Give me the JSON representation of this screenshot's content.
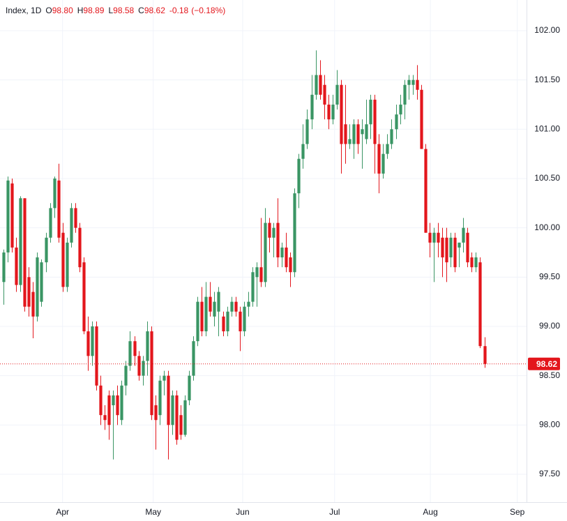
{
  "chart_data": {
    "type": "candlestick",
    "legend": {
      "symbol": "Index, 1D",
      "fields": [
        {
          "label": "O",
          "value": "98.80"
        },
        {
          "label": "H",
          "value": "98.89"
        },
        {
          "label": "L",
          "value": "98.58"
        },
        {
          "label": "C",
          "value": "98.62"
        }
      ],
      "change": "-0.18",
      "change_pct": "(−0.18%)"
    },
    "open": [
      99.45,
      99.75,
      100.45,
      99.8,
      99.42,
      100.3,
      99.5,
      99.35,
      99.1,
      99.25,
      99.65,
      99.9,
      100.2,
      100.48,
      99.95,
      99.4,
      99.85,
      100.2,
      100.0,
      99.65,
      98.95,
      98.7,
      99.0,
      98.4,
      98.1,
      98.3,
      98.2,
      98.3,
      98.05,
      98.4,
      98.6,
      98.85,
      98.7,
      98.5,
      98.65,
      98.95,
      98.2,
      98.1,
      98.45,
      98.5,
      98.0,
      98.3,
      98.1,
      97.9,
      98.25,
      98.5,
      98.85,
      99.25,
      98.95,
      99.3,
      99.1,
      99.15,
      99.1,
      98.95,
      99.15,
      99.25,
      99.15,
      98.95,
      99.2,
      99.25,
      99.5,
      99.6,
      99.45,
      100.05,
      99.9,
      100.05,
      99.7,
      99.8,
      99.7,
      99.55,
      100.35,
      100.7,
      100.85,
      101.1,
      101.35,
      101.55,
      101.45,
      101.25,
      101.1,
      101.25,
      101.45,
      101.05,
      100.85,
      100.85,
      101.05,
      100.95,
      100.9,
      101.05,
      101.3,
      100.85,
      100.55,
      100.75,
      100.85,
      101.0,
      101.15,
      101.25,
      101.45,
      101.45,
      101.5,
      101.4,
      100.8,
      99.95,
      99.85,
      99.95,
      99.9,
      99.9,
      99.7,
      99.9,
      99.8,
      99.85,
      99.95,
      99.7,
      99.6,
      99.65,
      98.8
    ],
    "high": [
      99.78,
      100.52,
      100.5,
      99.9,
      100.32,
      100.3,
      99.6,
      99.45,
      99.75,
      99.68,
      99.95,
      100.25,
      100.52,
      100.65,
      100.05,
      99.9,
      100.25,
      100.25,
      100.05,
      99.7,
      99.1,
      99.05,
      99.05,
      98.5,
      98.2,
      98.35,
      98.35,
      98.4,
      98.45,
      98.65,
      98.95,
      98.9,
      98.75,
      98.7,
      99.05,
      99.0,
      98.3,
      98.5,
      98.55,
      98.55,
      98.35,
      98.35,
      98.2,
      98.3,
      98.55,
      98.9,
      99.3,
      99.4,
      99.45,
      99.45,
      99.35,
      99.4,
      99.15,
      99.2,
      99.3,
      99.3,
      99.2,
      99.25,
      99.35,
      99.6,
      99.65,
      100.1,
      100.2,
      100.1,
      100.05,
      100.3,
      99.85,
      99.95,
      99.75,
      100.4,
      100.75,
      101.05,
      101.2,
      101.55,
      101.8,
      101.7,
      101.55,
      101.35,
      101.35,
      101.6,
      101.5,
      101.45,
      101.05,
      101.1,
      101.1,
      101.1,
      101.3,
      101.35,
      101.35,
      100.95,
      100.85,
      100.95,
      101.1,
      101.25,
      101.35,
      101.5,
      101.55,
      101.55,
      101.65,
      101.45,
      100.85,
      100.05,
      100.0,
      100.05,
      100.0,
      100.0,
      99.95,
      99.95,
      99.85,
      100.1,
      100.0,
      99.75,
      99.75,
      99.7,
      98.89
    ],
    "low": [
      99.22,
      99.65,
      99.75,
      99.35,
      99.35,
      99.15,
      99.1,
      98.88,
      99.05,
      99.2,
      99.55,
      99.85,
      100.1,
      99.85,
      99.35,
      99.35,
      99.8,
      99.95,
      99.55,
      98.92,
      98.55,
      98.6,
      98.35,
      98.0,
      97.95,
      97.85,
      97.65,
      98.0,
      98.0,
      98.3,
      98.55,
      98.6,
      98.45,
      98.4,
      98.5,
      98.05,
      97.75,
      98.0,
      98.3,
      97.65,
      97.9,
      97.8,
      97.85,
      97.88,
      98.2,
      98.45,
      98.8,
      98.9,
      98.9,
      99.1,
      99.0,
      98.9,
      98.9,
      98.9,
      99.1,
      99.1,
      98.75,
      98.9,
      99.1,
      99.2,
      99.2,
      99.4,
      99.4,
      99.75,
      99.7,
      99.6,
      99.6,
      99.55,
      99.4,
      99.5,
      100.2,
      100.6,
      100.8,
      101.0,
      101.3,
      101.3,
      101.1,
      101.0,
      101.05,
      101.2,
      100.55,
      100.65,
      100.8,
      100.7,
      100.75,
      100.6,
      100.85,
      100.9,
      100.55,
      100.35,
      100.5,
      100.7,
      100.8,
      100.9,
      101.05,
      101.1,
      101.3,
      101.35,
      101.3,
      100.8,
      99.95,
      99.7,
      99.45,
      99.7,
      99.5,
      99.45,
      99.6,
      99.55,
      99.6,
      99.75,
      99.6,
      99.55,
      99.55,
      98.78,
      98.58
    ],
    "close": [
      99.75,
      100.48,
      99.8,
      99.42,
      100.3,
      99.2,
      99.2,
      99.1,
      99.7,
      99.65,
      99.9,
      100.2,
      100.5,
      99.9,
      99.4,
      99.85,
      100.2,
      100.0,
      99.6,
      98.95,
      98.7,
      99.0,
      98.4,
      98.1,
      98.05,
      98.0,
      98.3,
      98.1,
      98.4,
      98.6,
      98.85,
      98.7,
      98.5,
      98.65,
      98.95,
      98.1,
      98.05,
      98.45,
      98.5,
      98.0,
      98.3,
      97.85,
      97.9,
      98.25,
      98.5,
      98.85,
      99.25,
      98.95,
      99.3,
      99.15,
      99.25,
      99.35,
      98.95,
      99.15,
      99.25,
      99.15,
      98.95,
      99.2,
      99.25,
      99.55,
      99.6,
      99.45,
      100.05,
      99.9,
      100.0,
      99.7,
      99.8,
      99.6,
      99.55,
      100.35,
      100.7,
      100.85,
      101.1,
      101.35,
      101.55,
      101.35,
      101.25,
      101.1,
      101.25,
      101.45,
      100.85,
      100.85,
      100.9,
      101.05,
      100.85,
      101.0,
      101.05,
      101.3,
      100.85,
      100.55,
      100.75,
      100.85,
      101.0,
      101.15,
      101.25,
      101.45,
      101.5,
      101.5,
      101.4,
      100.8,
      99.95,
      99.85,
      99.95,
      99.85,
      99.7,
      99.65,
      99.9,
      99.6,
      99.85,
      100.0,
      99.65,
      99.6,
      99.7,
      98.8,
      98.62
    ],
    "up_color": "#3a9564",
    "down_color": "#e3161c",
    "ylim": [
      97.217,
      102.311
    ],
    "yticks": [
      {
        "value": 97.5,
        "label": "97.50"
      },
      {
        "value": 98,
        "label": "98.00"
      },
      {
        "value": 98.5,
        "label": "98.50"
      },
      {
        "value": 99,
        "label": "99.00"
      },
      {
        "value": 99.5,
        "label": "99.50"
      },
      {
        "value": 100,
        "label": "100.00"
      },
      {
        "value": 100.5,
        "label": "100.50"
      },
      {
        "value": 101,
        "label": "101.00"
      },
      {
        "value": 101.5,
        "label": "101.50"
      },
      {
        "value": 102,
        "label": "102.00"
      }
    ],
    "xlim": [
      -0.83,
      124
    ],
    "xticks": [
      {
        "value": 14.0,
        "label": "Apr"
      },
      {
        "value": 35.5,
        "label": "May"
      },
      {
        "value": 56.7,
        "label": "Jun"
      },
      {
        "value": 78.5,
        "label": "Jul"
      },
      {
        "value": 101.2,
        "label": "Aug"
      },
      {
        "value": 121.8,
        "label": "Sep"
      }
    ],
    "grid": true,
    "last_price": {
      "value": 98.62,
      "label": "98.62"
    }
  }
}
